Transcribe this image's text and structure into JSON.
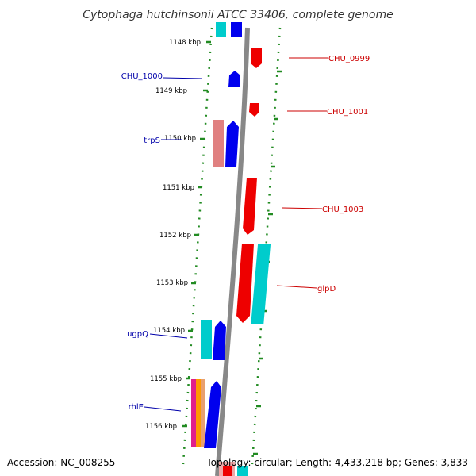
{
  "title": "Cytophaga hutchinsonii ATCC 33406, complete genome",
  "accession": "Accession: NC_008255",
  "topology": "Topology: circular; Length: 4,433,218 bp; Genes: 3,833",
  "colors": {
    "forward": "#0000ee",
    "reverse": "#ee0000",
    "rna": "#00cccc",
    "pink": "#e08080",
    "backbone": "#888888",
    "ruler": "#228b22",
    "label_forward": "#0000aa",
    "label_reverse": "#cc0000"
  },
  "ruler": [
    {
      "label": "1148 kbp"
    },
    {
      "label": "1149 kbp"
    },
    {
      "label": "1150 kbp"
    },
    {
      "label": "1151 kbp"
    },
    {
      "label": "1152 kbp"
    },
    {
      "label": "1153 kbp"
    },
    {
      "label": "1154 kbp"
    },
    {
      "label": "1155 kbp"
    },
    {
      "label": "1156 kbp"
    }
  ],
  "gene_labels": [
    {
      "text": "CHU_0999",
      "strand": "reverse"
    },
    {
      "text": "CHU_1000",
      "strand": "forward"
    },
    {
      "text": "CHU_1001",
      "strand": "reverse"
    },
    {
      "text": "trpS",
      "strand": "forward"
    },
    {
      "text": "CHU_1003",
      "strand": "reverse"
    },
    {
      "text": "glpD",
      "strand": "reverse"
    },
    {
      "text": "ugpQ",
      "strand": "forward"
    },
    {
      "text": "rhlE",
      "strand": "forward"
    }
  ]
}
